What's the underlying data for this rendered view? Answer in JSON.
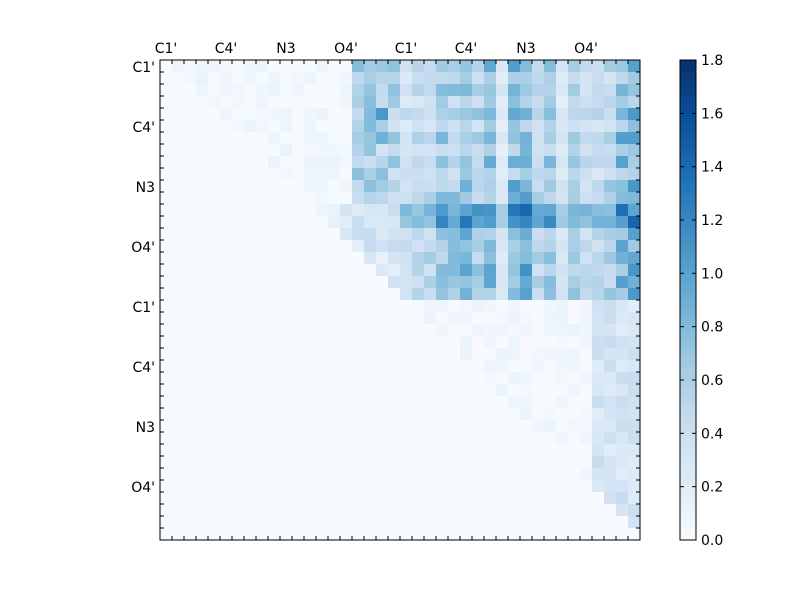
{
  "chart_data": {
    "type": "heatmap",
    "n": 40,
    "xticks": [
      "C1'",
      "C4'",
      "N3",
      "O4'",
      "C1'",
      "C4'",
      "N3",
      "O4'"
    ],
    "yticks": [
      "C1'",
      "C4'",
      "N3",
      "O4'",
      "C1'",
      "C4'",
      "N3",
      "O4'"
    ],
    "colorbar": {
      "min": 0.0,
      "max": 1.8,
      "ticks": [
        "0.0",
        "0.2",
        "0.4",
        "0.6",
        "0.8",
        "1.0",
        "1.2",
        "1.4",
        "1.6",
        "1.8"
      ]
    },
    "colormap": [
      "#f7fbff",
      "#deebf7",
      "#c6dbef",
      "#9ecae1",
      "#6baed6",
      "#4292c6",
      "#2171b5",
      "#08519c",
      "#08306b"
    ],
    "grid": false,
    "legend": "colorbar-right"
  }
}
